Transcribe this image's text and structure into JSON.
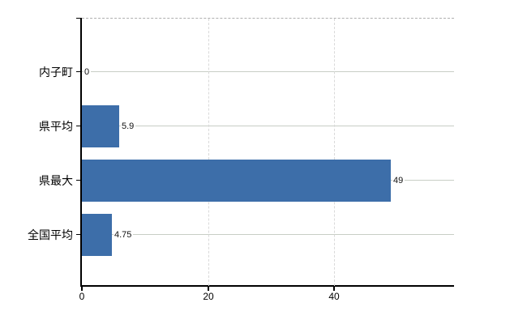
{
  "chart_data": {
    "type": "bar",
    "orientation": "horizontal",
    "title": "",
    "categories": [
      "内子町",
      "県平均",
      "県最大",
      "全国平均"
    ],
    "values": [
      0,
      5.9,
      49,
      4.75
    ],
    "value_labels": [
      "0",
      "5.9",
      "49",
      "4.75"
    ],
    "x_ticks": [
      "0",
      "20",
      "40"
    ],
    "x_tick_values": [
      0,
      20,
      40
    ],
    "xlim": [
      0,
      59
    ],
    "grid": "on",
    "legend_position": "none",
    "colors": {
      "bar": "#3d6ea9",
      "h_gridline": "#c8cec6",
      "v_gridline": "#d9d9d9",
      "top_border": "#b0b0b0",
      "axis": "#000000",
      "background": "#ffffff",
      "text": "#000000"
    }
  }
}
